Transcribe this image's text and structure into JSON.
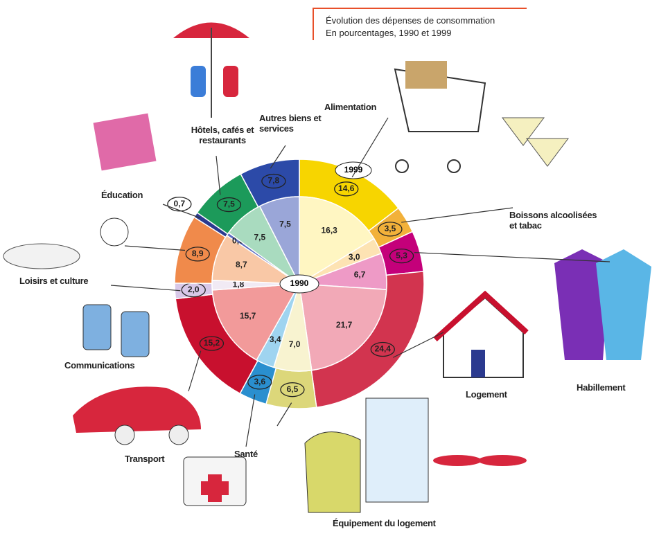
{
  "chart_data": {
    "type": "pie",
    "title": "Évolution des dépenses de consommation",
    "subtitle": "En pourcentages, 1990 et 1999",
    "categories": [
      "Alimentation",
      "Boissons alcoolisées et tabac",
      "Habillement",
      "Logement",
      "Équipement du logement",
      "Santé",
      "Transport",
      "Communications",
      "Loisirs et culture",
      "Éducation",
      "Hôtels, cafés et restaurants",
      "Autres biens et services"
    ],
    "series": [
      {
        "name": "1999",
        "colors": [
          "#f7d500",
          "#f2b13a",
          "#c4007a",
          "#d2344f",
          "#dcd77a",
          "#2a8fcf",
          "#c8102e",
          "#d8c8e8",
          "#f08a4b",
          "#2b3a8f",
          "#1c9a5a",
          "#2c4aa8"
        ],
        "values": [
          14.6,
          3.5,
          5.3,
          24.4,
          6.5,
          3.6,
          15.2,
          2.0,
          8.9,
          0.7,
          7.5,
          7.8
        ],
        "value_labels": [
          "14,6",
          "3,5",
          "5,3",
          "24,4",
          "6,5",
          "3,6",
          "15,2",
          "2,0",
          "8,9",
          "0,7",
          "7,5",
          "7,8"
        ]
      },
      {
        "name": "1990",
        "colors": [
          "#fff6c2",
          "#fde3b3",
          "#ee9ac6",
          "#f2a9b7",
          "#f8f3d0",
          "#9fd4f0",
          "#f29a9a",
          "#f1eaf4",
          "#f9c8a6",
          "#5c6cc0",
          "#a9dbbf",
          "#9aa6d8"
        ],
        "values": [
          16.3,
          3.0,
          6.7,
          21.7,
          7.0,
          3.4,
          15.7,
          1.8,
          8.7,
          0.6,
          7.5,
          7.5
        ],
        "value_labels": [
          "16,3",
          "3,0",
          "6,7",
          "21,7",
          "7,0",
          "3,4",
          "15,7",
          "1,8",
          "8,7",
          "0,6",
          "7,5",
          "7,5"
        ]
      }
    ]
  }
}
